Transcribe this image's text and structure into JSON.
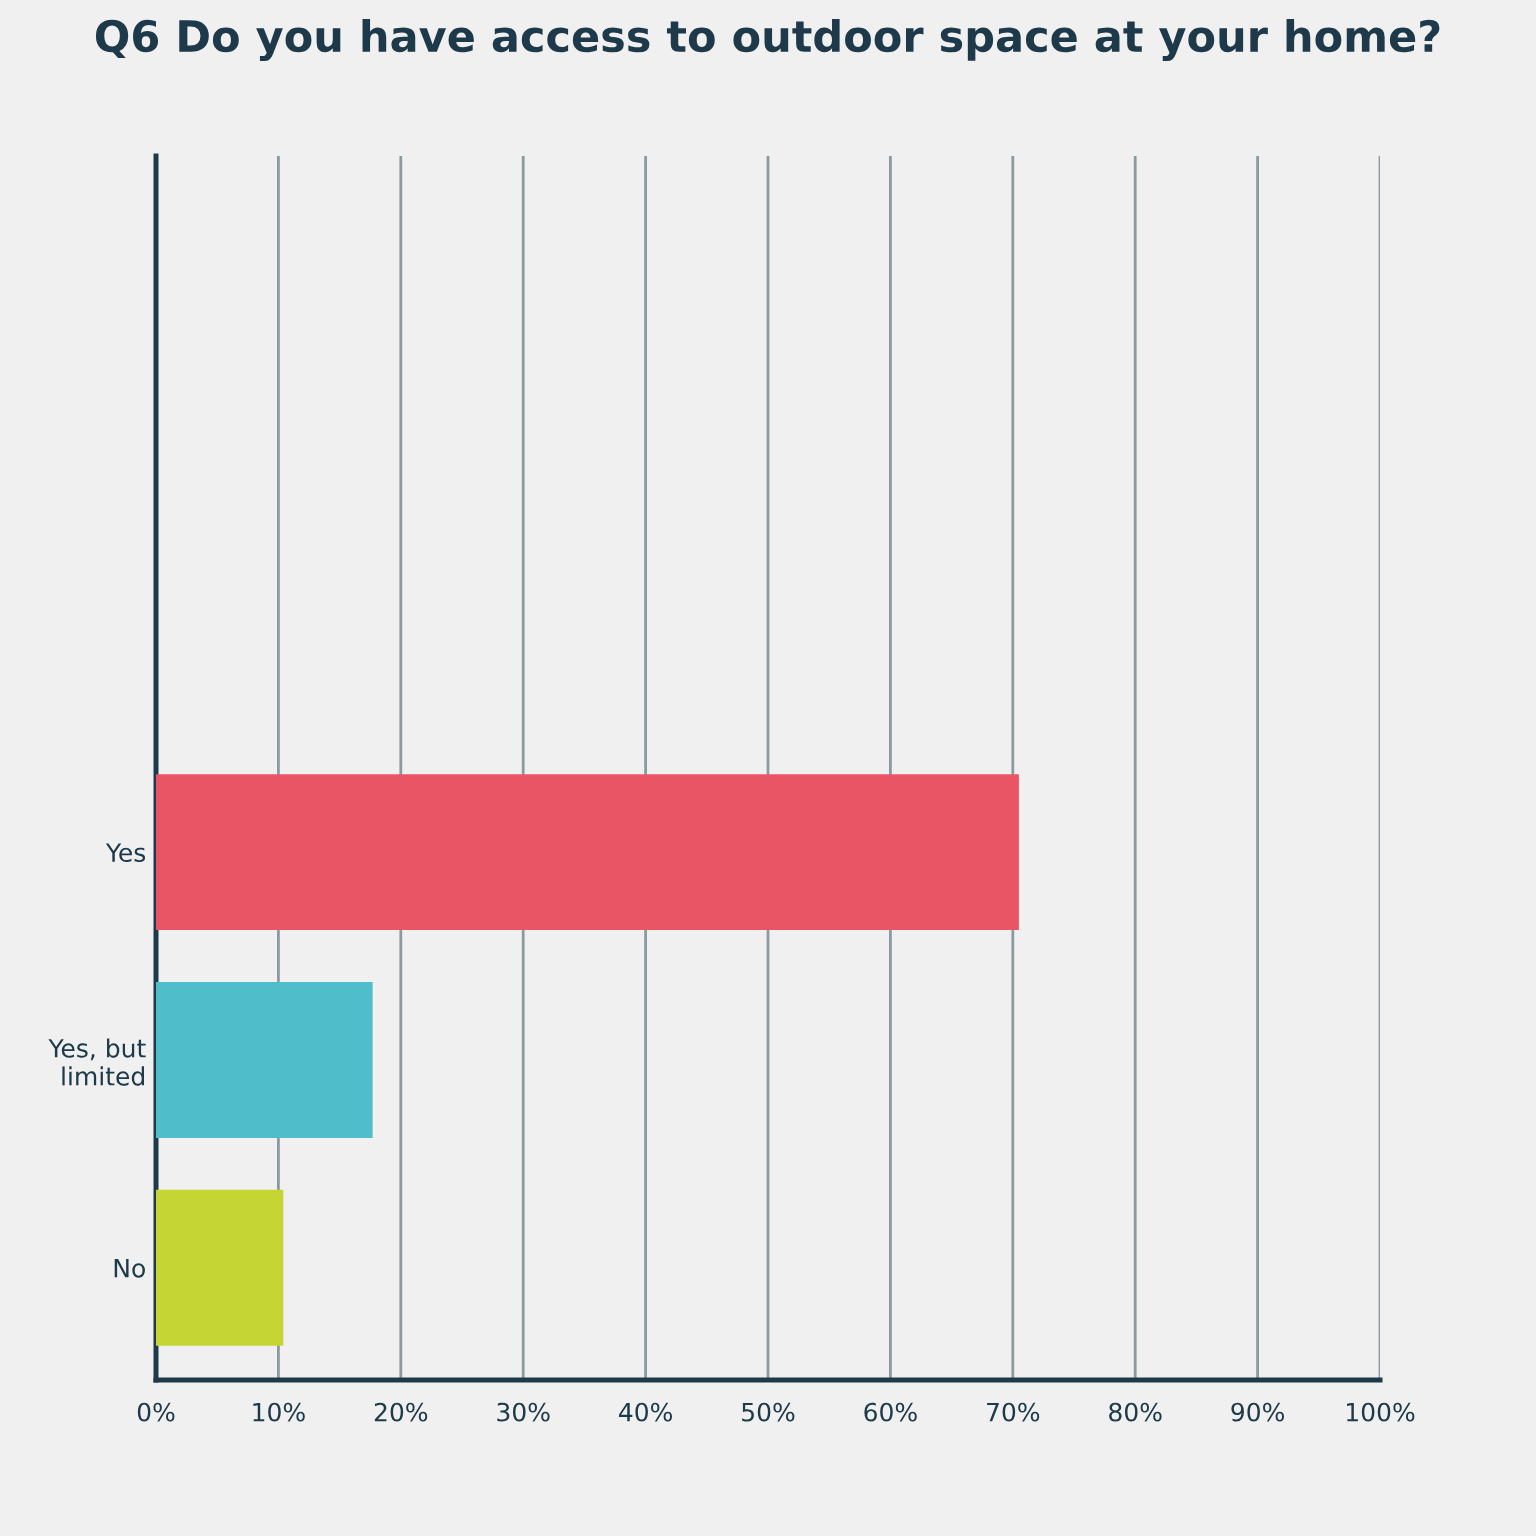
{
  "chart_data": {
    "type": "bar",
    "orientation": "horizontal",
    "title": "Q6 Do you have access to outdoor space at your home?",
    "categories": [
      "Yes",
      "Yes, but\nlimited",
      "No"
    ],
    "values": [
      70.5,
      17.7,
      10.4
    ],
    "colors": [
      "#e95565",
      "#50bdcb",
      "#c5d533"
    ],
    "xlim": [
      0,
      100
    ],
    "xticks": [
      {
        "value": 0,
        "label": "0%"
      },
      {
        "value": 10,
        "label": "10%"
      },
      {
        "value": 20,
        "label": "20%"
      },
      {
        "value": 30,
        "label": "30%"
      },
      {
        "value": 40,
        "label": "40%"
      },
      {
        "value": 50,
        "label": "50%"
      },
      {
        "value": 60,
        "label": "60%"
      },
      {
        "value": 70,
        "label": "70%"
      },
      {
        "value": 80,
        "label": "80%"
      },
      {
        "value": 90,
        "label": "90%"
      },
      {
        "value": 100,
        "label": "100%"
      }
    ],
    "grid": "x"
  }
}
